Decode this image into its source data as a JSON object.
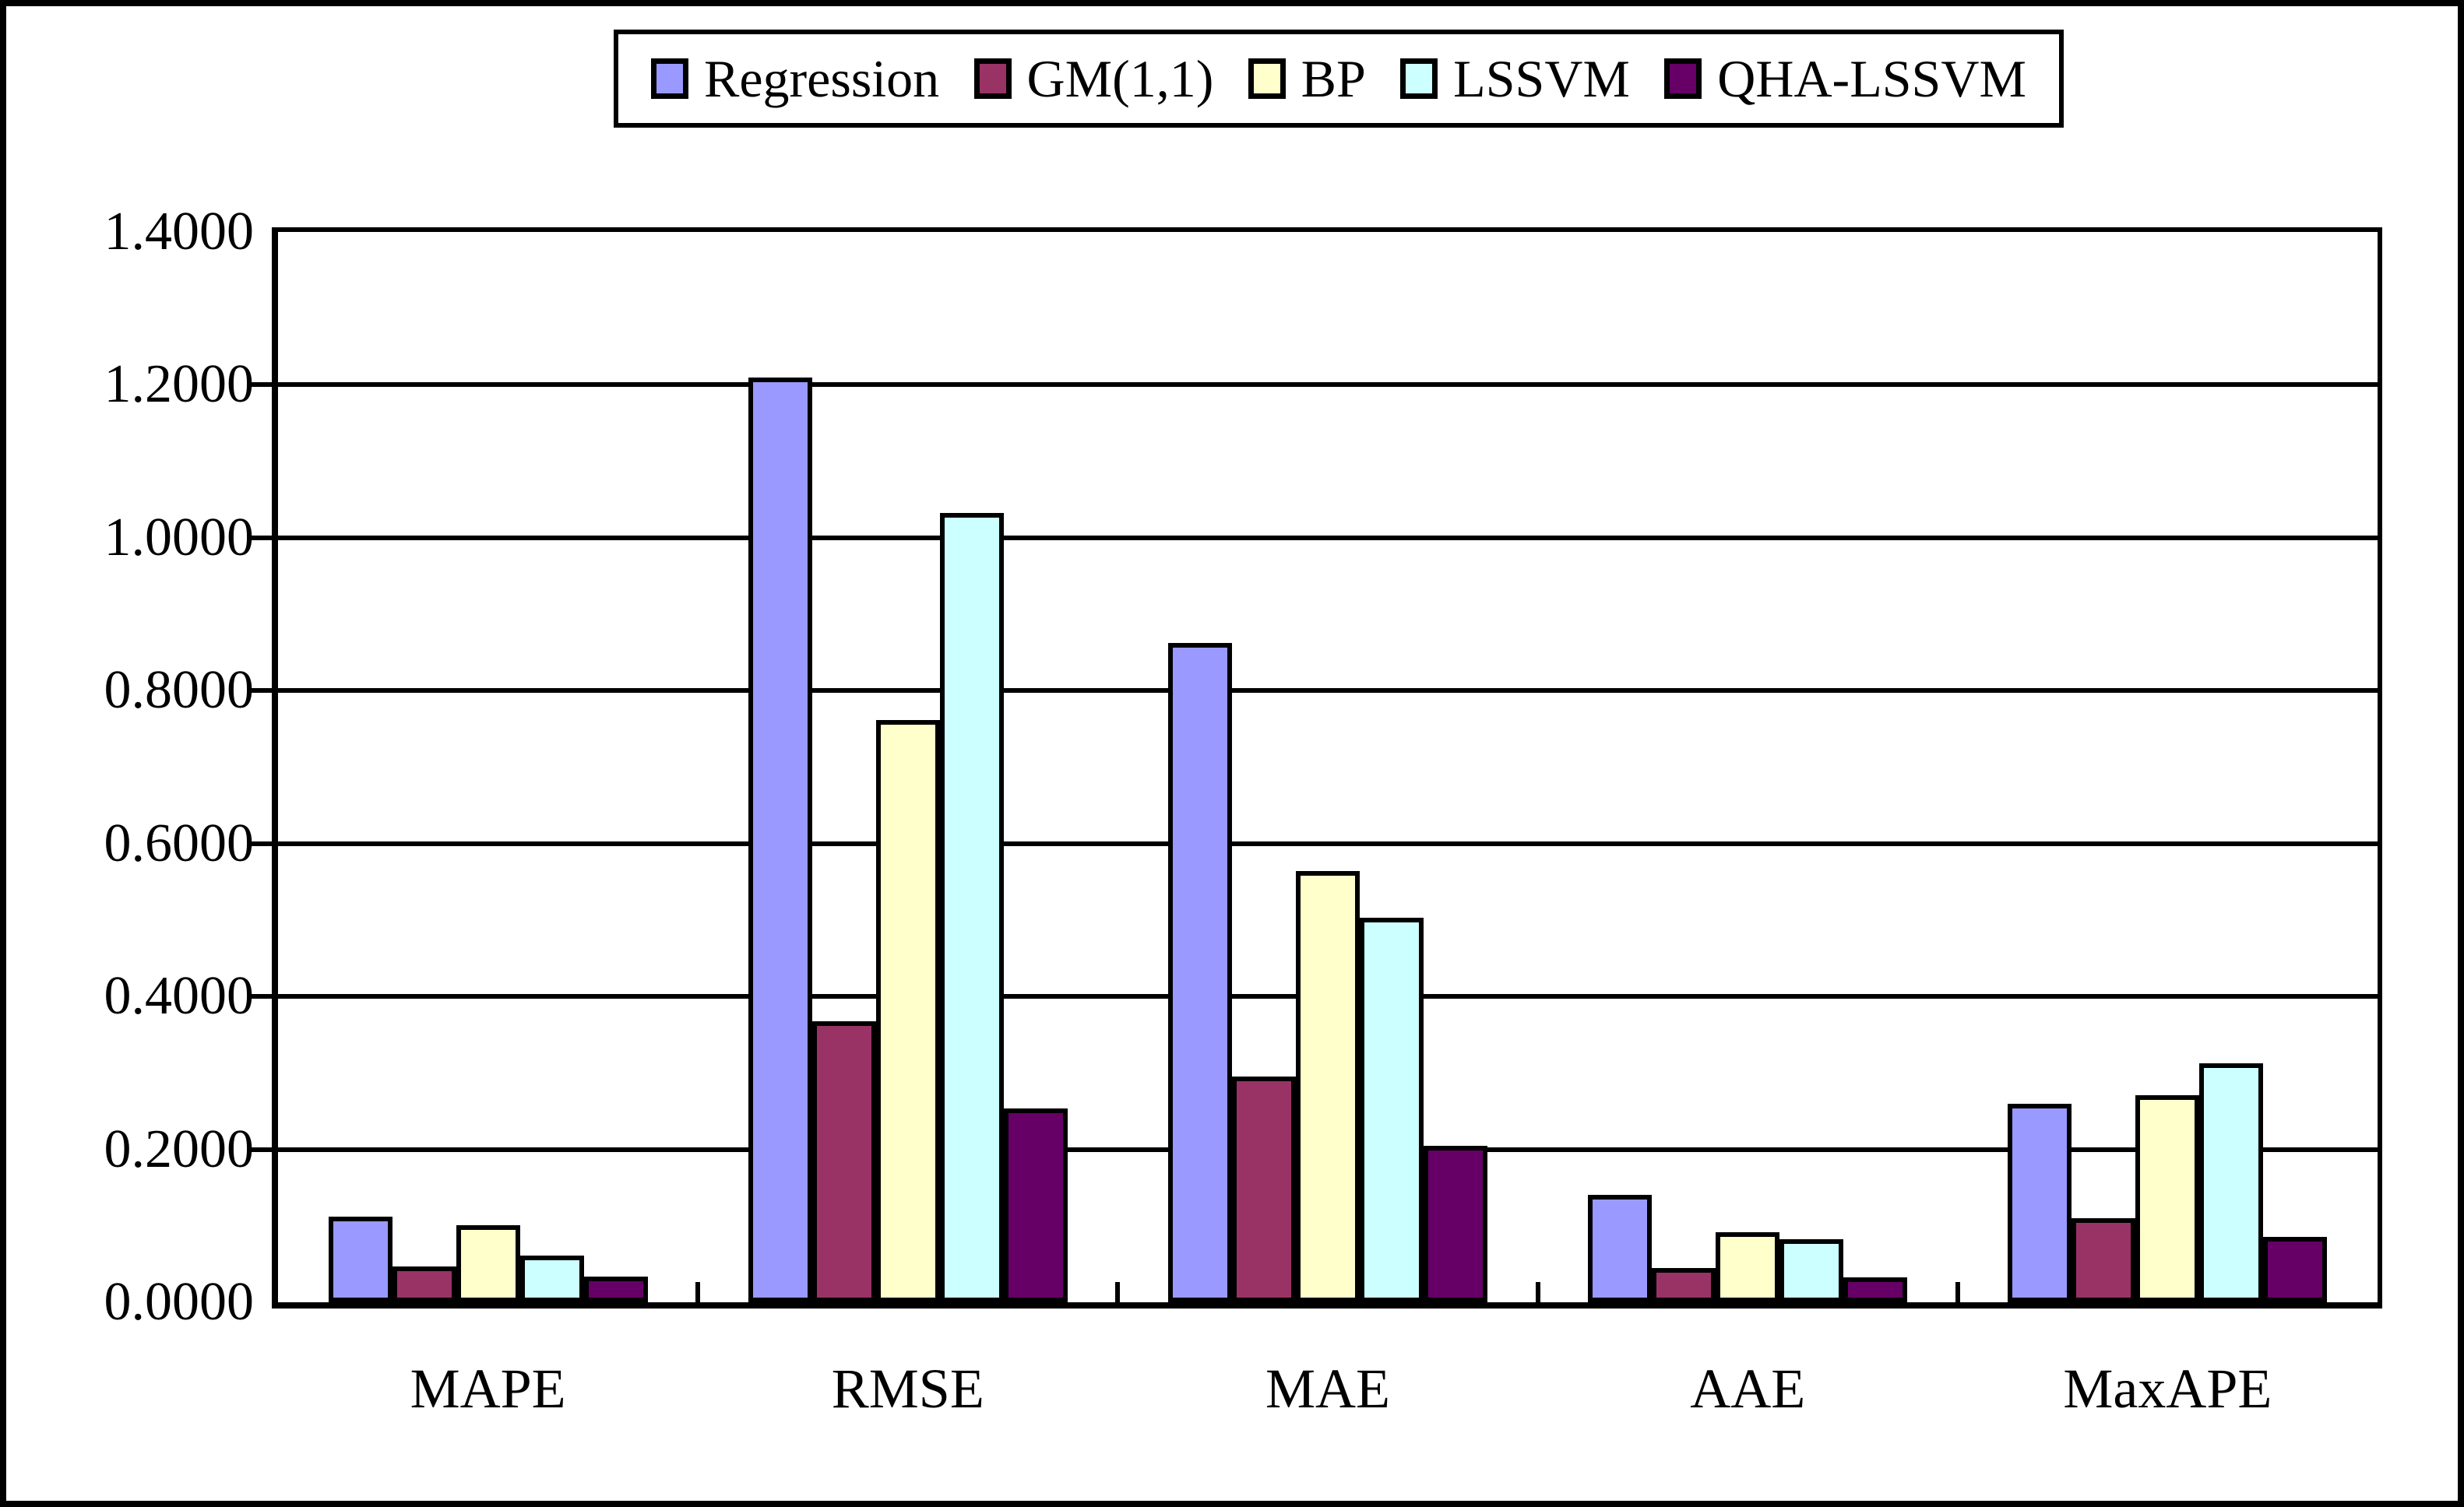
{
  "figure": {
    "background_color": "#FFFFFF",
    "border_color": "#000000",
    "gridline_color": "#000000",
    "bar_border_color": "#000000"
  },
  "chart_data": {
    "type": "bar",
    "title": "",
    "xlabel": "",
    "ylabel": "",
    "categories": [
      "MAPE",
      "RMSE",
      "MAE",
      "AAE",
      "MaxAPE"
    ],
    "series": [
      {
        "name": "Regression",
        "color": "#9999FF",
        "values": [
          0.112,
          1.21,
          0.862,
          0.14,
          0.26
        ]
      },
      {
        "name": "GM(1,1)",
        "color": "#993366",
        "values": [
          0.047,
          0.368,
          0.295,
          0.045,
          0.11
        ]
      },
      {
        "name": "BP",
        "color": "#FFFFCC",
        "values": [
          0.101,
          0.762,
          0.564,
          0.092,
          0.271
        ]
      },
      {
        "name": "LSSVM",
        "color": "#CCFFFF",
        "values": [
          0.061,
          1.032,
          0.503,
          0.082,
          0.313
        ]
      },
      {
        "name": "QHA-LSSVM",
        "color": "#660066",
        "values": [
          0.034,
          0.254,
          0.205,
          0.033,
          0.086
        ]
      }
    ],
    "ylim": [
      0,
      1.4
    ],
    "ytick_step": 0.2,
    "ytick_labels": [
      "0.0000",
      "0.2000",
      "0.4000",
      "0.6000",
      "0.8000",
      "1.0000",
      "1.2000",
      "1.4000"
    ],
    "grid": true,
    "legend_position": "top"
  }
}
